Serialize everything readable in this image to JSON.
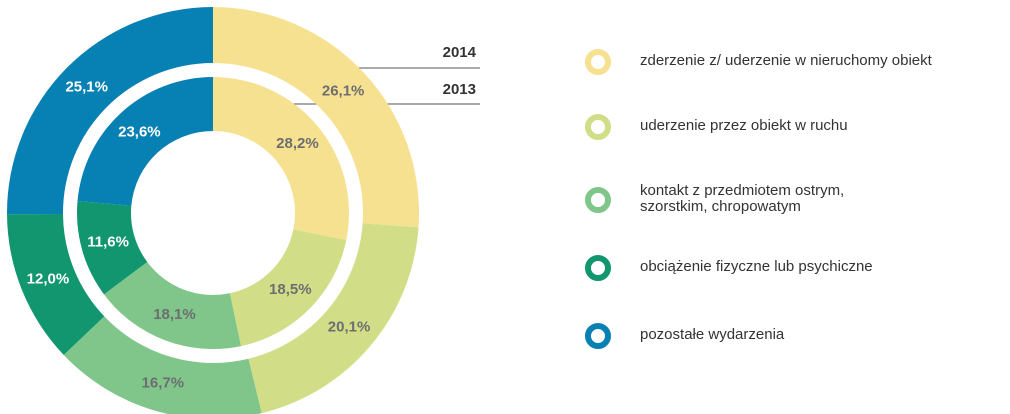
{
  "chart_data": {
    "type": "donut",
    "categories": [
      "zderzenie z/ uderzenie w nieruchomy obiekt",
      "uderzenie przez obiekt w ruchu",
      "kontakt z przedmiotem ostrym,\nszorstkim, chropowatym",
      "obciążenie fizyczne lub psychiczne",
      "pozostałe wydarzenia"
    ],
    "colors": [
      "#f6e190",
      "#d1de87",
      "#80c68b",
      "#11966f",
      "#0780b3"
    ],
    "series": [
      {
        "name": "2014",
        "values": [
          26.1,
          20.1,
          16.7,
          12.0,
          25.1
        ],
        "value_labels": [
          "26,1%",
          "20,1%",
          "16,7%",
          "12,0%",
          "25,1%"
        ]
      },
      {
        "name": "2013",
        "values": [
          28.2,
          18.5,
          18.1,
          11.6,
          23.6
        ],
        "value_labels": [
          "28,2%",
          "18,5%",
          "18,1%",
          "11,6%",
          "23,6%"
        ]
      }
    ]
  }
}
